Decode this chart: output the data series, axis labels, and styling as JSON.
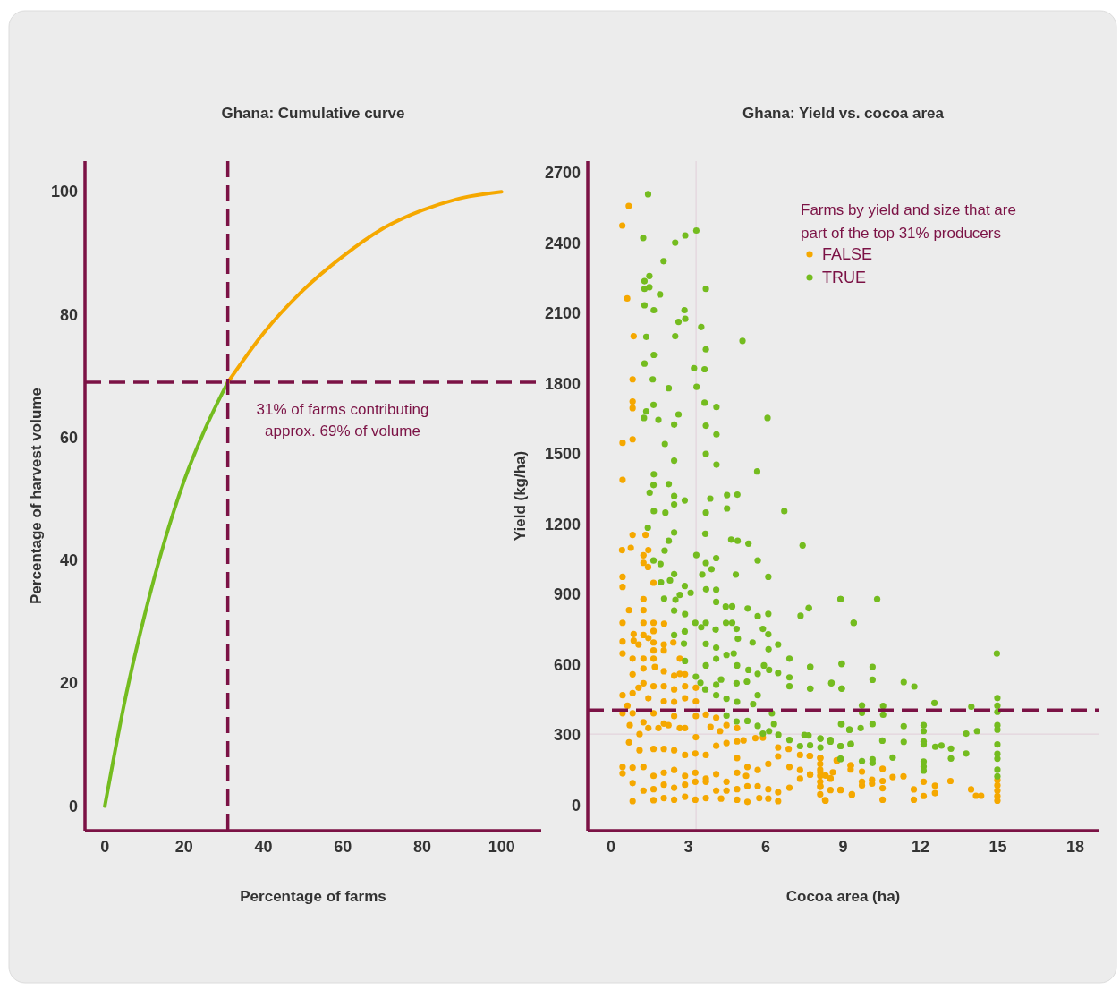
{
  "chart_data": [
    {
      "type": "line",
      "title": "Ghana: Cumulative curve",
      "xlabel": "Percentage of farms",
      "ylabel": "Percentage of harvest volume",
      "xlim": [
        -5,
        110
      ],
      "ylim": [
        -4,
        105
      ],
      "xticks": [
        0,
        20,
        40,
        60,
        80,
        100
      ],
      "yticks": [
        0,
        20,
        40,
        60,
        80,
        100
      ],
      "marker": "none",
      "line_style": "solid",
      "series": [
        {
          "color": "#74bc1f",
          "x": [
            0,
            2,
            5,
            10,
            15,
            20,
            25,
            31
          ],
          "values": [
            0,
            7,
            17,
            31,
            43,
            53,
            61,
            69
          ]
        },
        {
          "color": "#f5a800",
          "x": [
            31,
            40,
            50,
            60,
            70,
            80,
            90,
            100
          ],
          "values": [
            69,
            77,
            84,
            89.5,
            94,
            97,
            99,
            100
          ]
        }
      ],
      "ref_lines": [
        {
          "axis": "x",
          "value": 31,
          "color": "#7b1245",
          "line_style": "dashed"
        },
        {
          "axis": "y",
          "value": 69,
          "color": "#7b1245",
          "line_style": "dashed"
        }
      ],
      "annotations": [
        "31% of farms contributing approx. 69% of volume"
      ]
    },
    {
      "type": "scatter",
      "title": "Ghana: Yield vs. cocoa area",
      "xlabel": "Cocoa area (ha)",
      "ylabel": "Yield (kg/ha)",
      "xlim": [
        -0.9,
        18.9
      ],
      "ylim": [
        -107,
        2750
      ],
      "xticks": [
        0,
        3,
        6,
        9,
        12,
        15,
        18
      ],
      "yticks": [
        0,
        300,
        600,
        900,
        1200,
        1500,
        1800,
        2100,
        2400,
        2700
      ],
      "marker": "circle",
      "legend": "top right",
      "legend_title": "Farms by yield and size that are part of the top 31% producers",
      "series": [
        {
          "name": "FALSE",
          "color": "#f5a800",
          "x": [
            0.69,
            0.44,
            0.63,
            0.88,
            0.84,
            0.84,
            0.84,
            0.45,
            0.84,
            0.45,
            0.84,
            1.34,
            0.43,
            0.77,
            1.45,
            1.26,
            1.26,
            1.44,
            0.45,
            0.45,
            1.65,
            1.26,
            0.7,
            1.26,
            0.45,
            1.26,
            1.65,
            2.06,
            0.88,
            1.26,
            1.65,
            0.45,
            0.88,
            1.45,
            1.07,
            1.65,
            2.05,
            2.42,
            0.45,
            0.84,
            1.26,
            1.65,
            2.67,
            1.65,
            2.05,
            1.26,
            1.7,
            2.05,
            2.45,
            2.67,
            2.87,
            0.84,
            0.45,
            0.84,
            1.26,
            1.65,
            2.05,
            2.45,
            2.87,
            3.29,
            1.07,
            1.45,
            2.05,
            2.45,
            2.87,
            0.64,
            3.29,
            0.45,
            0.84,
            1.26,
            1.65,
            2.05,
            2.45,
            2.87,
            3.29,
            3.68,
            4.08,
            4.48,
            0.73,
            1.11,
            1.45,
            1.84,
            2.23,
            2.67,
            3.29,
            3.86,
            4.23,
            4.89,
            5.14,
            4.89,
            5.6,
            5.89,
            6.48,
            6.89,
            7.33,
            7.72,
            8.12,
            0.7,
            1.11,
            1.65,
            2.05,
            2.45,
            2.87,
            3.27,
            3.68,
            4.08,
            4.48,
            4.89,
            5.29,
            5.69,
            6.1,
            6.48,
            6.92,
            7.33,
            7.72,
            8.12,
            8.75,
            9.3,
            0.45,
            0.45,
            0.84,
            1.26,
            1.65,
            2.05,
            2.45,
            2.87,
            3.27,
            3.68,
            4.08,
            4.48,
            4.89,
            5.24,
            0.84,
            1.26,
            1.65,
            2.05,
            2.45,
            2.87,
            3.27,
            3.68,
            4.08,
            4.48,
            4.89,
            5.29,
            5.69,
            6.1,
            6.48,
            6.92,
            7.33,
            8.12,
            8.51,
            8.9,
            9.34,
            0.84,
            1.65,
            2.05,
            2.45,
            2.87,
            3.27,
            3.68,
            4.27,
            4.89,
            5.29,
            5.75,
            6.1,
            6.48,
            8.3,
            7.7,
            7.72,
            8.11,
            8.11,
            8.11,
            8.11,
            8.11,
            8.11,
            8.11,
            8.32,
            8.32,
            8.51,
            8.51,
            8.76,
            8.6,
            8.9,
            9.29,
            9.29,
            9.34,
            9.73,
            9.73,
            9.73,
            10.12,
            10.12,
            10.53,
            10.53,
            10.53,
            10.53,
            10.92,
            11.34,
            11.74,
            11.74,
            12.12,
            12.12,
            12.56,
            12.56,
            13.16,
            13.96,
            14.15,
            14.35,
            14.98,
            14.98,
            14.98,
            14.98,
            14.98
          ],
          "values": [
            2559,
            2475,
            2164,
            2003,
            1819,
            1724,
            1696,
            1548,
            1563,
            1390,
            1155,
            1155,
            1090,
            1100,
            1090,
            1068,
            1036,
            1018,
            976,
            933,
            951,
            881,
            834,
            834,
            780,
            780,
            780,
            776,
            732,
            728,
            745,
            700,
            704,
            715,
            687,
            696,
            687,
            696,
            649,
            627,
            627,
            627,
            627,
            662,
            662,
            585,
            592,
            573,
            554,
            562,
            560,
            560,
            471,
            480,
            522,
            509,
            509,
            496,
            509,
            503,
            503,
            458,
            445,
            443,
            458,
            426,
            445,
            394,
            394,
            356,
            394,
            350,
            382,
            331,
            382,
            388,
            375,
            343,
            343,
            305,
            331,
            331,
            343,
            331,
            292,
            336,
            318,
            331,
            278,
            274,
            288,
            290,
            248,
            242,
            216,
            212,
            203,
            270,
            236,
            242,
            242,
            236,
            216,
            222,
            216,
            255,
            267,
            203,
            165,
            152,
            178,
            210,
            165,
            152,
            133,
            140,
            193,
            171,
            165,
            137,
            162,
            165,
            127,
            140,
            152,
            127,
            140,
            115,
            134,
            102,
            140,
            127,
            96,
            64,
            70,
            89,
            76,
            89,
            102,
            102,
            64,
            64,
            70,
            83,
            83,
            70,
            57,
            76,
            115,
            83,
            115,
            67,
            48,
            19,
            23,
            32,
            25,
            38,
            25,
            32,
            30,
            25,
            16,
            32,
            30,
            19,
            23,
            212,
            132,
            203,
            178,
            153,
            127,
            102,
            80,
            48,
            21,
            128,
            117,
            66,
            191,
            142,
            66,
            171,
            154,
            46,
            145,
            102,
            86,
            110,
            94,
            157,
            105,
            74,
            25,
            122,
            125,
            69,
            25,
            102,
            41,
            85,
            53,
            105,
            69,
            42,
            42,
            109,
            86,
            64,
            41,
            21
          ]
        },
        {
          "name": "TRUE",
          "color": "#74bc1f",
          "x": [
            1.44,
            1.25,
            2.88,
            3.31,
            2.49,
            2.04,
            1.49,
            1.3,
            1.49,
            1.3,
            1.9,
            3.68,
            1.3,
            1.66,
            2.85,
            2.88,
            2.62,
            3.5,
            2.49,
            1.37,
            5.1,
            3.68,
            1.66,
            1.3,
            3.22,
            3.63,
            1.62,
            3.32,
            2.24,
            3.63,
            4.09,
            1.65,
            1.37,
            2.62,
            1.28,
            1.84,
            2.45,
            6.07,
            3.68,
            4.09,
            2.09,
            3.68,
            2.45,
            4.09,
            5.67,
            1.66,
            1.65,
            2.24,
            1.5,
            2.45,
            2.86,
            3.85,
            4.5,
            4.9,
            2.45,
            4.5,
            6.72,
            3.68,
            1.66,
            2.11,
            1.43,
            2.45,
            4.66,
            4.91,
            5.33,
            7.43,
            3.66,
            2.24,
            2.08,
            1.65,
            1.92,
            3.31,
            3.68,
            4.08,
            3.9,
            5.69,
            3.54,
            4.84,
            6.1,
            2.45,
            2.29,
            1.94,
            2.86,
            3.69,
            4.08,
            3.09,
            2.67,
            2.06,
            2.5,
            4.08,
            8.9,
            4.45,
            4.7,
            5.3,
            7.67,
            7.35,
            5.69,
            6.1,
            9.41,
            2.87,
            2.45,
            3.27,
            3.68,
            4.06,
            4.46,
            4.7,
            4.87,
            5.89,
            6.1,
            3.5,
            2.86,
            2.45,
            2.83,
            3.68,
            4.08,
            4.92,
            5.49,
            6.48,
            6.11,
            6.92,
            4.76,
            4.48,
            4.08,
            3.68,
            4.89,
            5.33,
            5.69,
            5.93,
            6.13,
            6.48,
            6.92,
            7.72,
            8.94,
            8.54,
            8.94,
            7.72,
            6.92,
            5.69,
            5.51,
            4.89,
            4.48,
            4.08,
            3.29,
            3.47,
            3.66,
            4.27,
            4.08,
            4.87,
            5.27,
            2.87,
            4.48,
            5.29,
            4.87,
            5.69,
            6.24,
            6.32,
            6.13,
            5.89,
            6.49,
            6.92,
            7.33,
            7.5,
            8.12,
            8.51,
            8.9,
            8.92,
            9.24,
            9.3,
            8.9,
            7.72,
            7.67,
            8.9,
            10.32,
            9.41,
            7.73,
            8.95,
            10.14,
            10.14,
            7.73,
            8.55,
            8.95,
            11.35,
            11.76,
            12.54,
            13.97,
            9.73,
            9.73,
            10.55,
            10.55,
            14.96,
            14.98,
            14.98,
            14.98,
            8.94,
            9.25,
            9.68,
            10.14,
            11.35,
            12.12,
            12.12,
            13.77,
            14.19,
            14.98,
            14.98,
            7.66,
            8.12,
            8.12,
            8.51,
            8.9,
            9.29,
            10.52,
            11.35,
            12.12,
            12.12,
            12.57,
            12.81,
            13.18,
            13.77,
            14.98,
            14.98,
            14.98,
            14.98,
            14.98,
            8.9,
            9.73,
            10.14,
            10.14,
            10.92,
            12.12,
            12.12,
            12.12,
            13.18
          ],
          "values": [
            2609,
            2422,
            2433,
            2454,
            2402,
            2323,
            2260,
            2238,
            2212,
            2205,
            2181,
            2205,
            2135,
            2114,
            2114,
            2077,
            2064,
            2042,
            2003,
            2000,
            1983,
            1947,
            1923,
            1886,
            1866,
            1862,
            1819,
            1787,
            1781,
            1719,
            1701,
            1710,
            1682,
            1669,
            1654,
            1646,
            1626,
            1654,
            1621,
            1584,
            1543,
            1501,
            1472,
            1455,
            1426,
            1414,
            1368,
            1372,
            1335,
            1321,
            1302,
            1310,
            1325,
            1327,
            1285,
            1268,
            1257,
            1250,
            1257,
            1250,
            1186,
            1165,
            1135,
            1130,
            1118,
            1110,
            1160,
            1130,
            1088,
            1046,
            1031,
            1069,
            1035,
            1056,
            1009,
            1046,
            986,
            986,
            976,
            988,
            961,
            953,
            937,
            923,
            921,
            908,
            899,
            883,
            878,
            869,
            881,
            849,
            850,
            841,
            842,
            810,
            808,
            818,
            780,
            817,
            832,
            780,
            780,
            751,
            780,
            780,
            754,
            754,
            731,
            761,
            743,
            728,
            691,
            690,
            674,
            712,
            696,
            687,
            667,
            627,
            649,
            643,
            626,
            598,
            598,
            579,
            562,
            598,
            579,
            566,
            547,
            592,
            604,
            522,
            499,
            499,
            509,
            471,
            433,
            443,
            456,
            471,
            550,
            524,
            496,
            538,
            516,
            522,
            529,
            617,
            384,
            361,
            359,
            340,
            394,
            348,
            318,
            307,
            302,
            280,
            254,
            301,
            286,
            273,
            254,
            348,
            324,
            263,
            199,
            257,
            844,
            881,
            881,
            780,
            592,
            606,
            592,
            537,
            499,
            524,
            499,
            527,
            508,
            438,
            422,
            427,
            396,
            425,
            388,
            649,
            459,
            426,
            400,
            348,
            324,
            331,
            348,
            339,
            343,
            318,
            307,
            318,
            343,
            324,
            299,
            286,
            248,
            280,
            254,
            262,
            277,
            272,
            274,
            261,
            251,
            256,
            243,
            222,
            261,
            221,
            200,
            153,
            125,
            200,
            190,
            197,
            182,
            205,
            188,
            166,
            149,
            201
          ]
        }
      ],
      "ref_lines": [
        {
          "axis": "x",
          "value": 3.3,
          "color": "#e3d3dc",
          "line_style": "solid"
        },
        {
          "axis": "y",
          "value": 305,
          "color": "#e3d3dc",
          "line_style": "solid"
        },
        {
          "axis": "y",
          "value": 408,
          "color": "#7b1245",
          "line_style": "dashed"
        }
      ]
    }
  ]
}
